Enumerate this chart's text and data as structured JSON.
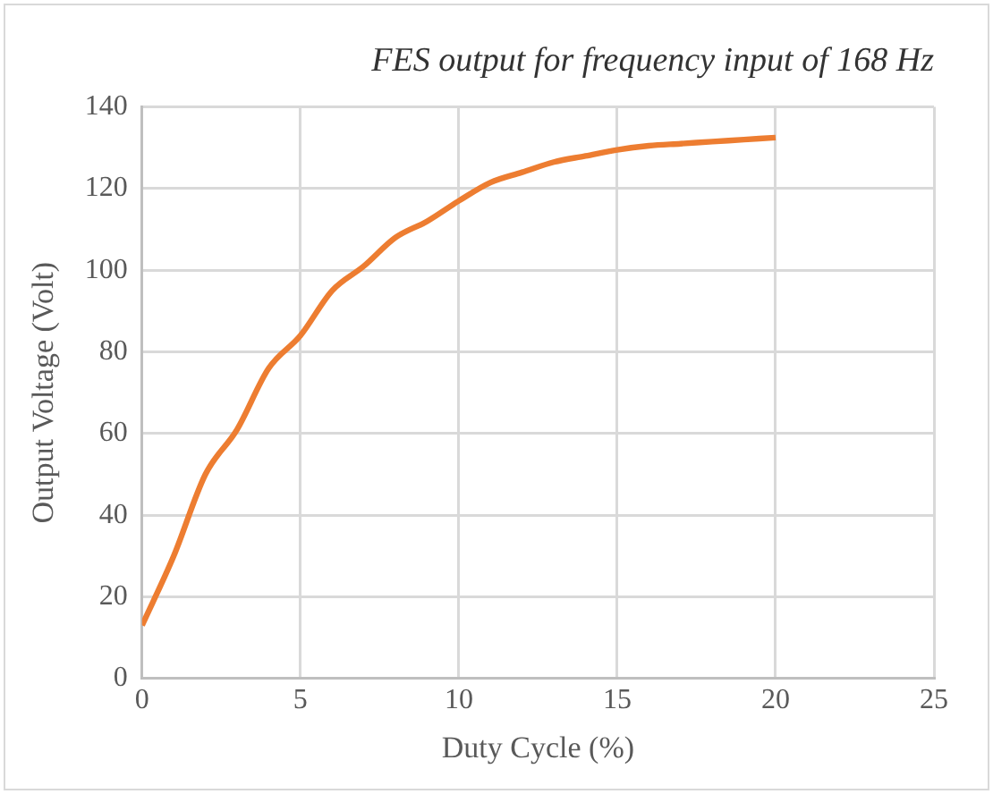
{
  "chart_data": {
    "type": "line",
    "title": "FES output for frequency input of 168 Hz",
    "xlabel": "Duty Cycle (%)",
    "ylabel": "Output Voltage (Volt)",
    "x": [
      0,
      1,
      2,
      3,
      4,
      5,
      6,
      7,
      8,
      9,
      10,
      11,
      12,
      13,
      14,
      15,
      16,
      17,
      18,
      19,
      20
    ],
    "series": [
      {
        "color": "#ed7d31",
        "values": [
          13,
          30,
          50,
          61,
          76,
          84,
          95,
          101,
          108,
          112,
          117,
          121.5,
          124,
          126.5,
          128,
          129.5,
          130.5,
          131,
          131.5,
          132,
          132.5
        ]
      }
    ],
    "xlim": [
      0,
      25
    ],
    "xticks": [
      0,
      5,
      10,
      15,
      20,
      25
    ],
    "ylim": [
      0,
      140
    ],
    "yticks": [
      0,
      20,
      40,
      60,
      80,
      100,
      120,
      140
    ],
    "grid": true,
    "legend": false,
    "marker": "none",
    "line_style": "solid"
  }
}
